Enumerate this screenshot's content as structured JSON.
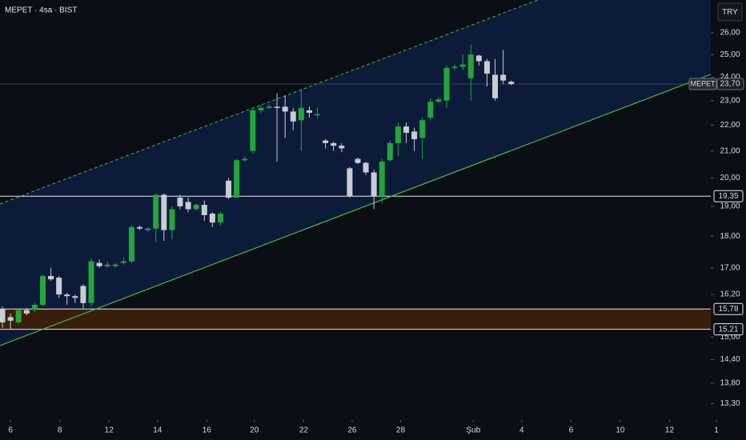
{
  "chart_data": {
    "type": "candlestick",
    "title": "MEPET · 4sa · BIST",
    "currency": "TRY",
    "log": true,
    "up_color": "#22a63a",
    "down_color": "#c9ccd3",
    "x": [
      0,
      1,
      2,
      3,
      4,
      5,
      6,
      7,
      8,
      9,
      10,
      11,
      12,
      13,
      14,
      15,
      16,
      17,
      18,
      19,
      20,
      21,
      22,
      23,
      24,
      25,
      26,
      27,
      28,
      29,
      30,
      31,
      32,
      33,
      34,
      35,
      36,
      37,
      38,
      39,
      40,
      41,
      42,
      43,
      44,
      45,
      46,
      47,
      48,
      49,
      50,
      51,
      52,
      53,
      54,
      55,
      56,
      57,
      58,
      59,
      60,
      61,
      62,
      63
    ],
    "open": [
      15.78,
      15.55,
      15.4,
      15.75,
      15.75,
      15.9,
      16.75,
      16.7,
      16.2,
      16.15,
      16.45,
      15.95,
      17.15,
      17.05,
      17.05,
      17.15,
      17.2,
      18.3,
      18.2,
      18.25,
      19.4,
      18.2,
      19.3,
      19.15,
      18.9,
      19.05,
      18.75,
      18.45,
      19.9,
      19.3,
      20.65,
      21.0,
      22.6,
      22.7,
      22.75,
      22.75,
      22.55,
      22.2,
      22.6,
      22.4,
      21.4,
      21.3,
      21.2,
      20.35,
      20.7,
      20.55,
      20.2,
      19.35,
      20.65,
      21.3,
      21.95,
      21.75,
      21.5,
      22.3,
      22.95,
      23.0,
      24.4,
      24.45,
      23.95,
      24.95,
      24.7,
      24.1,
      24.1,
      23.8
    ],
    "high": [
      15.85,
      15.65,
      15.8,
      15.8,
      15.95,
      16.8,
      17.0,
      16.75,
      16.25,
      16.2,
      16.5,
      17.3,
      17.25,
      17.2,
      17.15,
      17.3,
      18.35,
      18.35,
      18.3,
      19.45,
      19.45,
      19.0,
      19.4,
      19.3,
      19.1,
      19.2,
      18.8,
      18.8,
      20.0,
      20.7,
      20.8,
      22.7,
      22.8,
      22.85,
      23.3,
      23.2,
      22.7,
      23.5,
      22.75,
      22.7,
      21.45,
      21.35,
      21.3,
      20.4,
      20.75,
      20.6,
      20.3,
      20.7,
      21.4,
      22.1,
      22.1,
      21.9,
      22.3,
      23.1,
      23.15,
      24.5,
      24.55,
      25.0,
      25.45,
      25.0,
      24.8,
      24.8,
      25.2,
      23.85
    ],
    "low": [
      15.25,
      15.2,
      15.35,
      15.6,
      15.7,
      15.85,
      16.6,
      16.1,
      15.9,
      15.95,
      15.8,
      15.85,
      17.0,
      17.0,
      17.0,
      17.1,
      17.15,
      18.2,
      18.15,
      17.8,
      17.85,
      17.9,
      18.9,
      18.8,
      18.85,
      18.5,
      18.3,
      18.35,
      19.25,
      19.3,
      20.6,
      20.9,
      22.5,
      22.65,
      20.6,
      21.5,
      21.8,
      21.0,
      22.3,
      22.3,
      21.1,
      21.0,
      20.95,
      19.3,
      20.5,
      20.1,
      18.9,
      19.1,
      20.6,
      20.8,
      21.3,
      21.0,
      20.7,
      22.2,
      22.9,
      22.7,
      24.3,
      24.3,
      23.0,
      24.5,
      23.6,
      23.0,
      23.7,
      23.65
    ],
    "close": [
      15.4,
      15.45,
      15.75,
      15.65,
      15.9,
      16.75,
      16.65,
      16.2,
      16.15,
      16.1,
      15.95,
      17.2,
      17.05,
      17.1,
      17.1,
      17.2,
      18.3,
      18.25,
      18.25,
      19.4,
      18.2,
      18.9,
      19.0,
      18.9,
      19.05,
      18.7,
      18.45,
      18.75,
      19.3,
      20.65,
      20.7,
      22.6,
      22.7,
      22.75,
      22.7,
      22.55,
      22.15,
      22.7,
      22.5,
      22.45,
      21.3,
      21.2,
      21.1,
      19.35,
      20.55,
      20.2,
      19.35,
      20.6,
      21.3,
      21.95,
      21.7,
      21.45,
      22.2,
      22.95,
      23.05,
      24.4,
      24.45,
      24.55,
      25.0,
      24.7,
      24.15,
      23.1,
      23.85,
      23.7
    ],
    "xlim": [
      -0.3,
      88.6
    ],
    "xticks": [
      {
        "value": 1.0,
        "label": "6"
      },
      {
        "value": 7.1,
        "label": "8"
      },
      {
        "value": 13.2,
        "label": "12"
      },
      {
        "value": 19.2,
        "label": "14"
      },
      {
        "value": 25.3,
        "label": "16"
      },
      {
        "value": 31.2,
        "label": "20"
      },
      {
        "value": 37.3,
        "label": "22"
      },
      {
        "value": 43.3,
        "label": "26"
      },
      {
        "value": 49.3,
        "label": "28"
      },
      {
        "value": 58.3,
        "label": "Şub"
      },
      {
        "value": 64.3,
        "label": "4"
      },
      {
        "value": 70.4,
        "label": "6"
      },
      {
        "value": 76.5,
        "label": "10"
      },
      {
        "value": 82.6,
        "label": "12"
      },
      {
        "value": 88.4,
        "label": "1"
      }
    ],
    "ylim": [
      12.91,
      27.59
    ],
    "yticks": [
      {
        "value": 26,
        "label": "26,00"
      },
      {
        "value": 25,
        "label": "25,00"
      },
      {
        "value": 24,
        "label": "24,00"
      },
      {
        "value": 23,
        "label": "23,00"
      },
      {
        "value": 22,
        "label": "22,00"
      },
      {
        "value": 21,
        "label": "21,00"
      },
      {
        "value": 20,
        "label": "20,00"
      },
      {
        "value": 19,
        "label": "19,00"
      },
      {
        "value": 18,
        "label": "18,00"
      },
      {
        "value": 17,
        "label": "17,00"
      },
      {
        "value": 16.2,
        "label": "16,20"
      },
      {
        "value": 15,
        "label": "15,00"
      },
      {
        "value": 14.4,
        "label": "14,40"
      },
      {
        "value": 13.8,
        "label": "13,80"
      },
      {
        "value": 13.3,
        "label": "13,30"
      }
    ],
    "levels": [
      {
        "value": 19.35,
        "label": "19,35"
      },
      {
        "value": 15.78,
        "label": "15,78"
      },
      {
        "value": 15.21,
        "label": "15,21"
      }
    ],
    "last_price": {
      "name": "MEPET",
      "value": 23.7,
      "label": "23,70"
    }
  }
}
